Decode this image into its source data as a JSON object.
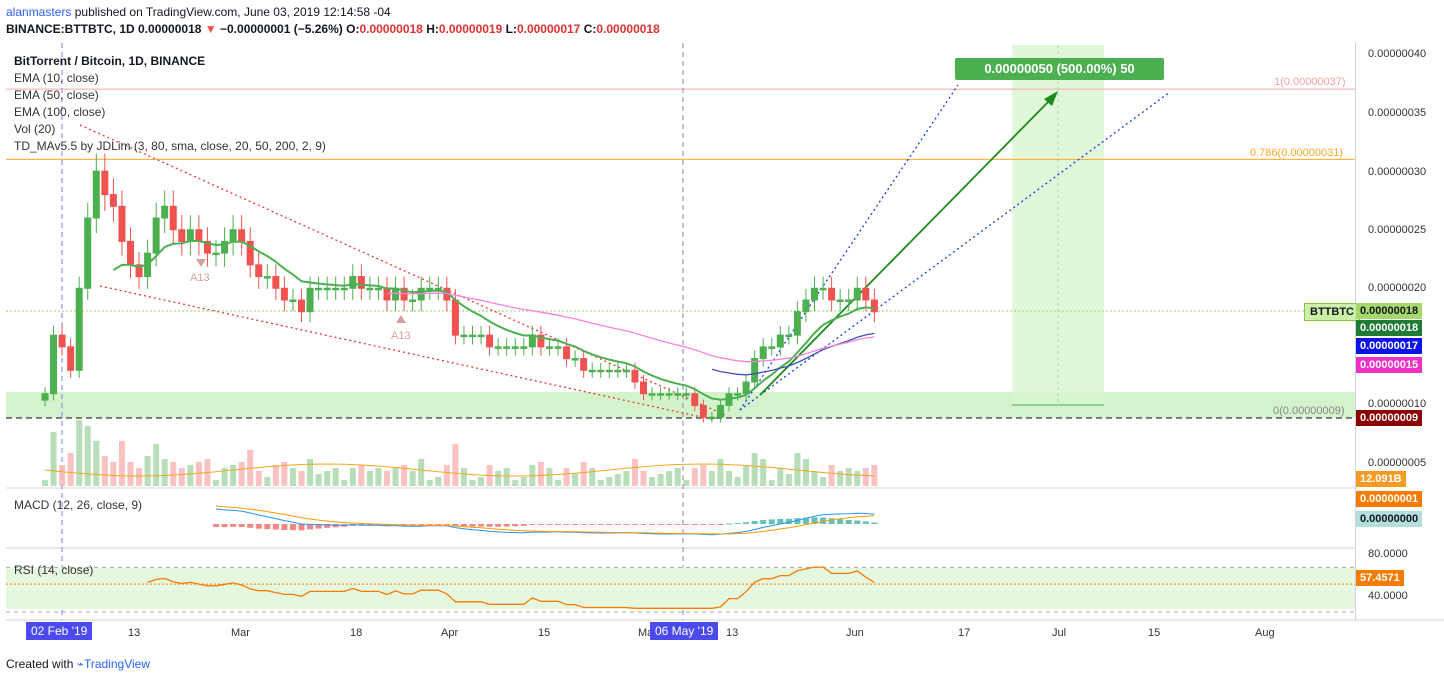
{
  "header": {
    "username": "alanmasters",
    "published_text": "published on TradingView.com, June 03, 2019 12:14:58 -04",
    "symbol_line": "BINANCE:BTTBTC, 1D",
    "last_price": "0.00000018",
    "change": "−0.00000001 (−5.26%)",
    "o_label": "O:",
    "o_value": "0.00000018",
    "h_label": "H:",
    "h_value": "0.00000019",
    "l_label": "L:",
    "l_value": "0.00000017",
    "c_label": "C:",
    "c_value": "0.00000018"
  },
  "legend": {
    "title": "BitTorrent / Bitcoin, 1D, BINANCE",
    "ema10": "EMA (10, close)",
    "ema50": "EMA (50, close)",
    "ema100": "EMA (100, close)",
    "vol": "Vol (20)",
    "td": "TD_MAv5.5 by JDLim (3, 80, sma, close, 20, 50, 200, 2, 9)",
    "macd": "MACD (12, 26, close, 9)",
    "rsi": "RSI (14, close)"
  },
  "annotations": {
    "target_box": "0.00000050 (500.00%) 50",
    "fib_1": "1(0.00000037)",
    "fib_0786": "0.786(0.00000031)",
    "fib_0": "0(0.00000009)",
    "a13_1": "A13",
    "a13_2": "A13",
    "ticker": "BTTBTC"
  },
  "price_tags": {
    "last": "0.00000018",
    "ema10": "0.00000018",
    "ema50": "0.00000017",
    "ema100": "0.00000015",
    "fib0": "0.00000009",
    "volume": "12.091B",
    "macd_signal": "0.00000001",
    "macd_hist": "0.00000000",
    "rsi": "57.4571"
  },
  "colors": {
    "up": "#4caf50",
    "down": "#ef5350",
    "ema10": "#4caf50",
    "ema50": "#3f51b5",
    "ema100": "#ff80e0",
    "fib1": "#f8a8a8",
    "fib0786": "#ffa726",
    "macd": "#2196f3",
    "signal": "#ff9800",
    "rsi": "#f57c00",
    "target": "#4caf50"
  },
  "x_axis": {
    "ticks": [
      "13",
      "Mar",
      "18",
      "Apr",
      "15",
      "May",
      "13",
      "Jun",
      "17",
      "Jul",
      "15",
      "Aug"
    ],
    "highlight_start": "02 Feb '19",
    "highlight_mid": "06 May '19"
  },
  "price_axis_ticks": [
    "0.00000040",
    "0.00000035",
    "0.00000030",
    "0.00000025",
    "0.00000020",
    "0.00000010",
    "0.00000005"
  ],
  "rsi_axis_ticks": [
    "80.0000",
    "40.0000"
  ],
  "footer": {
    "created_with": "Created with",
    "brand": "TradingView"
  },
  "chart_data": {
    "type": "candlestick",
    "symbol": "BINANCE:BTTBTC",
    "interval": "1D",
    "y_range": [
      0.0,
      4.2e-07
    ],
    "last_ohlc": {
      "open": 1.8e-07,
      "high": 1.9e-07,
      "low": 1.7e-07,
      "close": 1.8e-07
    },
    "close_series": [
      1.1e-07,
      1.6e-07,
      1.5e-07,
      1.3e-07,
      2e-07,
      2.6e-07,
      3e-07,
      2.8e-07,
      2.7e-07,
      2.4e-07,
      2.2e-07,
      2.1e-07,
      2.3e-07,
      2.6e-07,
      2.7e-07,
      2.5e-07,
      2.4e-07,
      2.5e-07,
      2.4e-07,
      2.3e-07,
      2.3e-07,
      2.4e-07,
      2.5e-07,
      2.4e-07,
      2.2e-07,
      2.1e-07,
      2.1e-07,
      2e-07,
      1.9e-07,
      1.9e-07,
      1.8e-07,
      2e-07,
      2e-07,
      2e-07,
      2e-07,
      2e-07,
      2.1e-07,
      2e-07,
      2e-07,
      2e-07,
      1.9e-07,
      2e-07,
      1.9e-07,
      1.9e-07,
      2e-07,
      2e-07,
      2e-07,
      1.9e-07,
      1.6e-07,
      1.6e-07,
      1.6e-07,
      1.6e-07,
      1.5e-07,
      1.5e-07,
      1.5e-07,
      1.5e-07,
      1.5e-07,
      1.6e-07,
      1.5e-07,
      1.5e-07,
      1.5e-07,
      1.4e-07,
      1.4e-07,
      1.3e-07,
      1.3e-07,
      1.3e-07,
      1.3e-07,
      1.3e-07,
      1.3e-07,
      1.2e-07,
      1.1e-07,
      1.1e-07,
      1.1e-07,
      1.1e-07,
      1.1e-07,
      1.1e-07,
      1e-07,
      9e-08,
      9e-08,
      1e-07,
      1.1e-07,
      1.1e-07,
      1.2e-07,
      1.4e-07,
      1.5e-07,
      1.5e-07,
      1.6e-07,
      1.6e-07,
      1.8e-07,
      1.9e-07,
      2e-07,
      2e-07,
      1.9e-07,
      1.9e-07,
      1.9e-07,
      2e-07,
      1.9e-07,
      1.8e-07
    ],
    "ema10_last": 1.8e-07,
    "ema50_last": 1.7e-07,
    "ema100_last": 1.5e-07,
    "fibonacci": [
      {
        "level": 1,
        "price": 3.7e-07
      },
      {
        "level": 0.786,
        "price": 3.1e-07
      },
      {
        "level": 0,
        "price": 9e-08
      }
    ],
    "target": {
      "price_change": 5e-07,
      "percent": 500.0,
      "bars": 50
    },
    "volume_last": "12.091B",
    "macd_last": {
      "signal": 1e-08,
      "histogram": 0.0
    },
    "rsi_last": 57.4571,
    "rsi_bands": [
      80,
      40
    ]
  }
}
